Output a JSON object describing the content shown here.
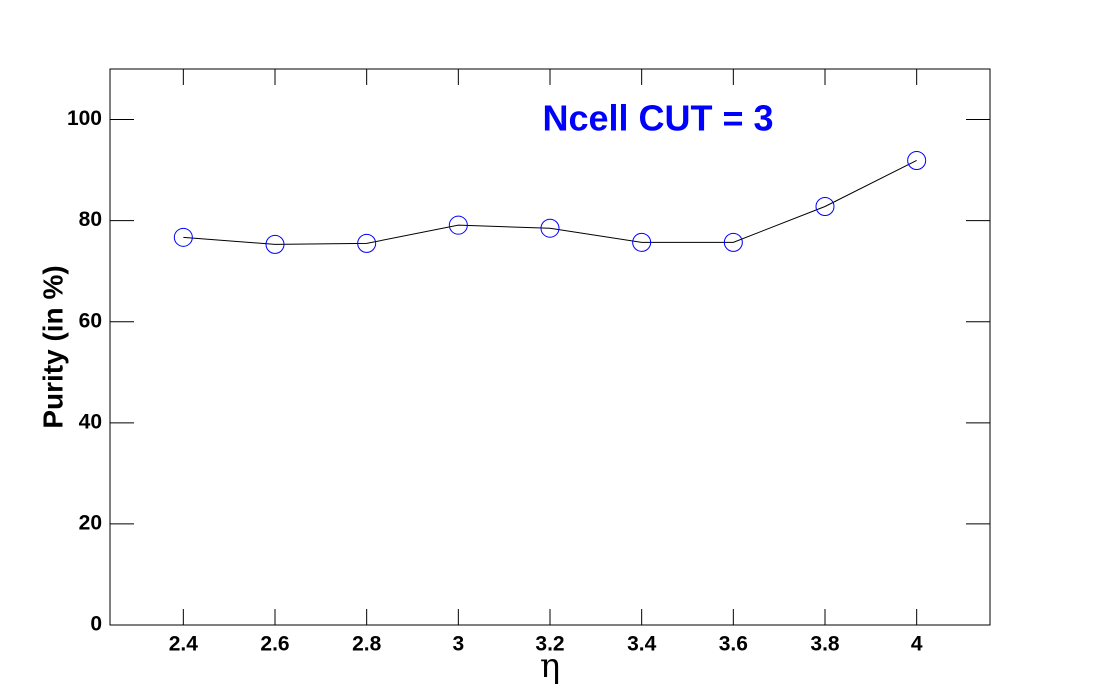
{
  "chart_data": {
    "type": "line",
    "annotation": "Ncell CUT = 3",
    "x_label": "η",
    "y_label": "Purity (in %)",
    "x": [
      2.4,
      2.6,
      2.8,
      3,
      3.2,
      3.4,
      3.6,
      3.8,
      4
    ],
    "series": [
      {
        "color": "#0000ff",
        "line_color": "#000000",
        "values": [
          76.7,
          75.3,
          75.5,
          79.1,
          78.5,
          75.7,
          75.7,
          82.8,
          91.9
        ]
      }
    ],
    "xlim": [
      2.24,
      4.16
    ],
    "xticks": [
      2.4,
      2.6,
      2.8,
      3,
      3.2,
      3.4,
      3.6,
      3.8,
      4
    ],
    "ylim": [
      0,
      110
    ],
    "yticks": [
      0,
      20,
      40,
      60,
      80,
      100
    ],
    "grid": false
  }
}
